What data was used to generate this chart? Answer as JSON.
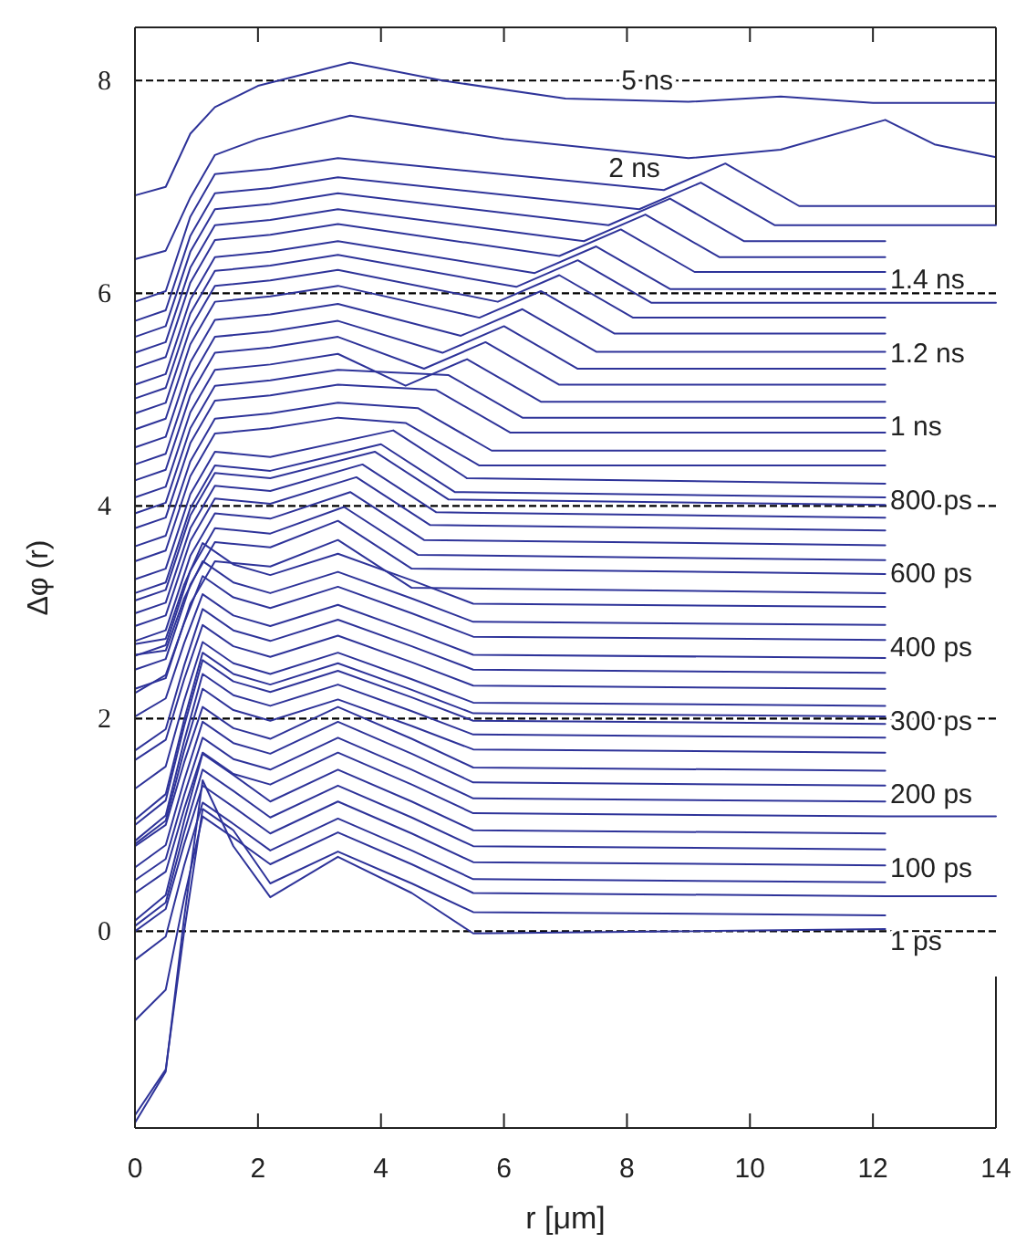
{
  "chart_data": {
    "type": "line",
    "xlabel": "r [μm]",
    "ylabel": "Δφ (r)",
    "color": "#2e3399",
    "xlim": [
      0,
      14
    ],
    "ylim": [
      -1.85,
      8.5
    ],
    "xticks": [
      0,
      2,
      4,
      6,
      8,
      10,
      12,
      14
    ],
    "yticks": [
      0,
      2,
      4,
      6,
      8
    ],
    "grid": false,
    "marker": "none",
    "line_style": "solid",
    "ref_lines": [
      {
        "axis": "y",
        "value": 0,
        "line_style": "dashed",
        "color": "#000000"
      },
      {
        "axis": "y",
        "value": 2,
        "line_style": "dashed",
        "color": "#000000"
      },
      {
        "axis": "y",
        "value": 4,
        "line_style": "dashed",
        "color": "#000000"
      },
      {
        "axis": "y",
        "value": 6,
        "line_style": "dashed",
        "color": "#000000"
      },
      {
        "axis": "y",
        "value": 8,
        "line_style": "dashed",
        "color": "#000000"
      }
    ],
    "annotations": [
      "5 ns",
      "2 ns",
      "1.4 ns",
      "1.2 ns",
      "1 ns",
      "800 ps",
      "600 ps",
      "400 ps",
      "300 ps",
      "200 ps",
      "100 ps",
      "1 ps"
    ],
    "series": [
      {
        "x": [
          0,
          0.5,
          0.8,
          1.1,
          1.6,
          2.2,
          3.3,
          4.5,
          5.5,
          12.2
        ],
        "values": [
          -1.8,
          -1.32,
          0.13,
          1.42,
          0.8,
          0.32,
          0.7,
          0.36,
          -0.02,
          0.02
        ]
      },
      {
        "x": [
          0,
          0.5,
          0.8,
          1.1,
          1.6,
          2.2,
          3.3,
          4.5,
          5.5,
          12.2
        ],
        "values": [
          -1.73,
          -1.3,
          0.0,
          1.15,
          0.95,
          0.45,
          0.75,
          0.45,
          0.18,
          0.15
        ]
      },
      {
        "x": [
          0,
          0.5,
          0.8,
          1.1,
          1.6,
          2.2,
          3.3,
          4.5,
          5.5,
          12.2,
          14
        ],
        "values": [
          -0.84,
          -0.55,
          0.31,
          1.08,
          0.88,
          0.63,
          0.93,
          0.63,
          0.36,
          0.33,
          0.33
        ]
      },
      {
        "x": [
          0,
          0.5,
          0.8,
          1.1,
          1.6,
          2.2,
          3.3,
          4.5,
          5.5,
          12.2
        ],
        "values": [
          -0.27,
          -0.05,
          0.62,
          1.21,
          1.01,
          0.76,
          1.06,
          0.76,
          0.49,
          0.46
        ]
      },
      {
        "x": [
          0,
          0.5,
          0.8,
          1.1,
          1.6,
          2.2,
          3.3,
          4.5,
          5.5,
          12.2
        ],
        "values": [
          0.0,
          0.21,
          0.82,
          1.37,
          1.17,
          0.92,
          1.22,
          0.92,
          0.65,
          0.62
        ]
      },
      {
        "x": [
          0,
          0.5,
          0.8,
          1.1,
          1.6,
          2.2,
          3.3,
          4.5,
          5.5,
          12.2
        ],
        "values": [
          0.05,
          0.27,
          0.93,
          1.52,
          1.32,
          1.07,
          1.37,
          1.07,
          0.8,
          0.77
        ]
      },
      {
        "x": [
          0,
          0.5,
          0.8,
          1.1,
          1.6,
          2.2,
          3.3,
          4.5,
          5.5,
          12.2
        ],
        "values": [
          0.1,
          0.34,
          1.04,
          1.67,
          1.47,
          1.22,
          1.52,
          1.22,
          0.95,
          0.92
        ]
      },
      {
        "x": [
          0,
          0.5,
          0.8,
          1.1,
          1.6,
          2.2,
          3.3,
          4.5,
          5.5,
          12.2,
          14
        ],
        "values": [
          0.36,
          0.56,
          1.15,
          1.68,
          1.48,
          1.38,
          1.68,
          1.38,
          1.11,
          1.08,
          1.08
        ]
      },
      {
        "x": [
          0,
          0.5,
          0.8,
          1.1,
          1.6,
          2.2,
          3.3,
          4.5,
          5.5,
          12.2
        ],
        "values": [
          0.48,
          0.68,
          1.28,
          1.82,
          1.62,
          1.52,
          1.82,
          1.52,
          1.25,
          1.22
        ]
      },
      {
        "x": [
          0,
          0.5,
          0.8,
          1.1,
          1.6,
          2.2,
          3.3,
          4.5,
          5.5,
          12.2
        ],
        "values": [
          0.6,
          0.81,
          1.42,
          1.97,
          1.77,
          1.67,
          1.97,
          1.67,
          1.4,
          1.37
        ]
      },
      {
        "x": [
          0,
          0.5,
          0.8,
          1.1,
          1.6,
          2.2,
          3.3,
          4.5,
          5.5,
          12.2
        ],
        "values": [
          0.8,
          1.0,
          1.59,
          2.11,
          1.91,
          1.81,
          2.11,
          1.81,
          1.54,
          1.51
        ]
      },
      {
        "x": [
          0,
          0.5,
          0.8,
          1.1,
          1.6,
          2.2,
          3.3,
          4.5,
          5.5,
          12.2
        ],
        "values": [
          0.82,
          1.04,
          1.7,
          2.28,
          2.08,
          1.98,
          2.18,
          1.93,
          1.71,
          1.68
        ]
      },
      {
        "x": [
          0,
          0.5,
          0.8,
          1.1,
          1.6,
          2.2,
          3.3,
          4.5,
          5.5,
          12.2
        ],
        "values": [
          0.85,
          1.09,
          1.79,
          2.42,
          2.22,
          2.12,
          2.32,
          2.07,
          1.85,
          1.82
        ]
      },
      {
        "x": [
          0,
          0.5,
          0.8,
          1.1,
          1.6,
          2.2,
          3.3,
          4.5,
          5.5,
          12.2
        ],
        "values": [
          1.0,
          1.23,
          1.93,
          2.55,
          2.35,
          2.25,
          2.45,
          2.2,
          1.98,
          1.95
        ]
      },
      {
        "x": [
          0,
          0.5,
          0.8,
          1.1,
          1.6,
          2.2,
          3.3,
          4.5,
          5.5,
          12.2
        ],
        "values": [
          1.05,
          1.29,
          1.99,
          2.62,
          2.42,
          2.32,
          2.52,
          2.27,
          2.05,
          2.02
        ]
      },
      {
        "x": [
          0,
          0.5,
          0.8,
          1.1,
          1.6,
          2.2,
          3.3,
          4.5,
          5.5,
          12.2
        ],
        "values": [
          1.34,
          1.55,
          2.17,
          2.72,
          2.52,
          2.42,
          2.62,
          2.37,
          2.15,
          2.12
        ]
      },
      {
        "x": [
          0,
          0.5,
          0.8,
          1.1,
          1.6,
          2.2,
          3.3,
          4.5,
          5.5,
          12.2
        ],
        "values": [
          1.61,
          1.8,
          2.37,
          2.88,
          2.68,
          2.58,
          2.78,
          2.53,
          2.31,
          2.28
        ]
      },
      {
        "x": [
          0,
          0.5,
          0.8,
          1.1,
          1.6,
          2.2,
          3.3,
          4.5,
          5.5,
          12.2
        ],
        "values": [
          1.7,
          1.9,
          2.5,
          3.03,
          2.83,
          2.73,
          2.93,
          2.68,
          2.46,
          2.43
        ]
      },
      {
        "x": [
          0,
          0.5,
          0.8,
          1.1,
          1.6,
          2.2,
          3.3,
          4.5,
          5.5,
          12.2
        ],
        "values": [
          2.02,
          2.19,
          2.71,
          3.17,
          2.97,
          2.87,
          3.07,
          2.82,
          2.6,
          2.57
        ]
      },
      {
        "x": [
          0,
          0.5,
          0.8,
          1.1,
          1.6,
          2.2,
          3.3,
          4.5,
          5.5,
          12.2
        ],
        "values": [
          2.24,
          2.41,
          2.9,
          3.34,
          3.14,
          3.04,
          3.24,
          2.99,
          2.77,
          2.74
        ]
      },
      {
        "x": [
          0,
          0.5,
          0.8,
          1.1,
          1.6,
          2.2,
          3.3,
          4.5,
          5.5,
          12.2
        ],
        "values": [
          2.6,
          2.64,
          3.13,
          3.48,
          3.28,
          3.18,
          3.38,
          3.13,
          2.91,
          2.88
        ]
      },
      {
        "x": [
          0,
          0.5,
          0.8,
          1.1,
          1.6,
          2.2,
          3.3,
          4.5,
          5.5,
          12.2
        ],
        "values": [
          2.7,
          2.75,
          3.26,
          3.65,
          3.45,
          3.35,
          3.55,
          3.3,
          3.08,
          3.05
        ]
      },
      {
        "x": [
          0,
          0.5,
          0.9,
          1.3,
          2.2,
          3.3,
          4.5,
          12.2
        ],
        "values": [
          2.28,
          2.38,
          3.08,
          3.48,
          3.43,
          3.68,
          3.23,
          3.18
        ]
      },
      {
        "x": [
          0,
          0.5,
          0.9,
          1.3,
          2.2,
          3.3,
          4.5,
          12.2
        ],
        "values": [
          2.46,
          2.56,
          3.26,
          3.66,
          3.61,
          3.86,
          3.41,
          3.36
        ]
      },
      {
        "x": [
          0,
          0.5,
          0.9,
          1.3,
          2.2,
          3.4,
          4.6,
          12.2
        ],
        "values": [
          2.59,
          2.69,
          3.39,
          3.79,
          3.74,
          3.99,
          3.54,
          3.49
        ]
      },
      {
        "x": [
          0,
          0.5,
          0.9,
          1.3,
          2.2,
          3.5,
          4.7,
          12.2
        ],
        "values": [
          2.73,
          2.83,
          3.53,
          3.93,
          3.88,
          4.13,
          3.68,
          3.63
        ]
      },
      {
        "x": [
          0,
          0.5,
          0.9,
          1.3,
          2.2,
          3.6,
          4.8,
          12.2
        ],
        "values": [
          2.87,
          2.97,
          3.67,
          4.07,
          4.02,
          4.27,
          3.82,
          3.77
        ]
      },
      {
        "x": [
          0,
          0.5,
          0.9,
          1.3,
          2.2,
          3.7,
          4.9,
          12.2
        ],
        "values": [
          2.99,
          3.09,
          3.79,
          4.19,
          4.14,
          4.39,
          3.94,
          3.89
        ]
      },
      {
        "x": [
          0,
          0.5,
          0.9,
          1.3,
          2.2,
          3.9,
          5.1,
          12.2
        ],
        "values": [
          3.11,
          3.21,
          3.91,
          4.31,
          4.26,
          4.51,
          4.06,
          4.01
        ]
      },
      {
        "x": [
          0,
          0.5,
          0.9,
          1.3,
          2.2,
          4.0,
          5.2,
          12.2
        ],
        "values": [
          3.18,
          3.28,
          3.98,
          4.38,
          4.33,
          4.58,
          4.13,
          4.08
        ]
      },
      {
        "x": [
          0,
          0.5,
          0.9,
          1.3,
          2.2,
          4.2,
          5.4,
          12.2
        ],
        "values": [
          3.31,
          3.41,
          4.11,
          4.51,
          4.46,
          4.71,
          4.26,
          4.21
        ]
      },
      {
        "x": [
          0,
          0.5,
          0.9,
          1.3,
          2.2,
          3.3,
          4.4,
          5.6,
          12.2
        ],
        "values": [
          3.48,
          3.58,
          4.28,
          4.68,
          4.73,
          4.83,
          4.78,
          4.38,
          4.38
        ]
      },
      {
        "x": [
          0,
          0.5,
          0.9,
          1.3,
          2.2,
          3.3,
          4.6,
          5.8,
          12.2
        ],
        "values": [
          3.62,
          3.72,
          4.42,
          4.82,
          4.87,
          4.97,
          4.92,
          4.52,
          4.52
        ]
      },
      {
        "x": [
          0,
          0.5,
          0.9,
          1.3,
          2.2,
          3.3,
          4.9,
          6.1,
          12.2
        ],
        "values": [
          3.79,
          3.89,
          4.59,
          4.99,
          5.04,
          5.14,
          5.09,
          4.69,
          4.69
        ]
      },
      {
        "x": [
          0,
          0.5,
          0.9,
          1.3,
          2.2,
          3.3,
          5.1,
          6.3,
          12.2
        ],
        "values": [
          3.93,
          4.03,
          4.73,
          5.13,
          5.18,
          5.28,
          5.23,
          4.83,
          4.83
        ]
      },
      {
        "x": [
          0,
          0.5,
          0.9,
          1.3,
          2.2,
          3.3,
          4.4,
          5.4,
          6.6,
          12.2
        ],
        "values": [
          4.08,
          4.18,
          4.88,
          5.28,
          5.33,
          5.43,
          5.13,
          5.38,
          4.98,
          4.98
        ]
      },
      {
        "x": [
          0,
          0.5,
          0.9,
          1.3,
          2.2,
          3.3,
          4.7,
          5.7,
          6.9,
          12.2
        ],
        "values": [
          4.24,
          4.34,
          5.04,
          5.44,
          5.49,
          5.59,
          5.29,
          5.54,
          5.14,
          5.14
        ]
      },
      {
        "x": [
          0,
          0.5,
          0.9,
          1.3,
          2.2,
          3.3,
          5.0,
          6.0,
          7.2,
          12.2
        ],
        "values": [
          4.39,
          4.49,
          5.19,
          5.59,
          5.64,
          5.74,
          5.44,
          5.69,
          5.29,
          5.29
        ]
      },
      {
        "x": [
          0,
          0.5,
          0.9,
          1.3,
          2.2,
          3.3,
          5.3,
          6.3,
          7.5,
          12.2
        ],
        "values": [
          4.55,
          4.65,
          5.35,
          5.75,
          5.8,
          5.9,
          5.6,
          5.85,
          5.45,
          5.45
        ]
      },
      {
        "x": [
          0,
          0.5,
          0.9,
          1.3,
          2.2,
          3.3,
          5.6,
          6.6,
          7.8,
          12.2
        ],
        "values": [
          4.72,
          4.82,
          5.52,
          5.92,
          5.97,
          6.07,
          5.77,
          6.02,
          5.62,
          5.62
        ]
      },
      {
        "x": [
          0,
          0.5,
          0.9,
          1.3,
          2.2,
          3.3,
          5.9,
          6.9,
          8.1,
          12.2
        ],
        "values": [
          4.87,
          4.97,
          5.67,
          6.07,
          6.12,
          6.22,
          5.92,
          6.17,
          5.77,
          5.77
        ]
      },
      {
        "x": [
          0,
          0.5,
          0.9,
          1.3,
          2.2,
          3.3,
          6.2,
          7.2,
          8.4,
          12.2,
          14
        ],
        "values": [
          5.01,
          5.11,
          5.81,
          6.21,
          6.26,
          6.36,
          6.06,
          6.31,
          5.91,
          5.91,
          5.91
        ]
      },
      {
        "x": [
          0,
          0.5,
          0.9,
          1.3,
          2.2,
          3.3,
          6.5,
          7.5,
          8.7,
          12.2
        ],
        "values": [
          5.14,
          5.24,
          5.94,
          6.34,
          6.39,
          6.49,
          6.19,
          6.44,
          6.04,
          6.04
        ]
      },
      {
        "x": [
          0,
          0.5,
          0.9,
          1.3,
          2.2,
          3.3,
          6.9,
          7.9,
          9.1,
          12.2
        ],
        "values": [
          5.3,
          5.4,
          6.1,
          6.5,
          6.55,
          6.65,
          6.35,
          6.6,
          6.2,
          6.2
        ]
      },
      {
        "x": [
          0,
          0.5,
          0.9,
          1.3,
          2.2,
          3.3,
          7.3,
          8.3,
          9.5,
          12.2
        ],
        "values": [
          5.44,
          5.54,
          6.24,
          6.64,
          6.69,
          6.79,
          6.49,
          6.74,
          6.34,
          6.34
        ]
      },
      {
        "x": [
          0,
          0.5,
          0.9,
          1.3,
          2.2,
          3.3,
          7.7,
          8.7,
          9.9,
          12.2
        ],
        "values": [
          5.59,
          5.69,
          6.39,
          6.79,
          6.84,
          6.94,
          6.64,
          6.89,
          6.49,
          6.49
        ]
      },
      {
        "x": [
          0,
          0.5,
          0.9,
          1.3,
          2.2,
          3.3,
          8.2,
          9.2,
          10.4,
          12.2,
          14
        ],
        "values": [
          5.74,
          5.84,
          6.54,
          6.94,
          6.99,
          7.09,
          6.79,
          7.04,
          6.64,
          6.64,
          6.64
        ]
      },
      {
        "x": [
          0,
          0.5,
          0.9,
          1.3,
          2.2,
          3.3,
          8.6,
          9.6,
          10.8,
          12.2,
          14
        ],
        "values": [
          5.92,
          6.02,
          6.72,
          7.12,
          7.17,
          7.27,
          6.97,
          7.22,
          6.82,
          6.82,
          6.82
        ]
      },
      {
        "x": [
          0,
          0.5,
          0.9,
          1.3,
          2,
          3.5,
          6,
          9,
          10.5,
          12.2,
          13,
          14
        ],
        "values": [
          6.32,
          6.4,
          6.9,
          7.3,
          7.45,
          7.67,
          7.45,
          7.27,
          7.35,
          7.63,
          7.4,
          7.28
        ]
      },
      {
        "x": [
          0,
          0.5,
          0.9,
          1.3,
          2,
          3.5,
          5,
          7,
          9,
          10.5,
          12,
          14
        ],
        "values": [
          6.92,
          7.0,
          7.5,
          7.75,
          7.95,
          8.17,
          8.0,
          7.83,
          7.8,
          7.85,
          7.79,
          7.79
        ]
      }
    ]
  }
}
